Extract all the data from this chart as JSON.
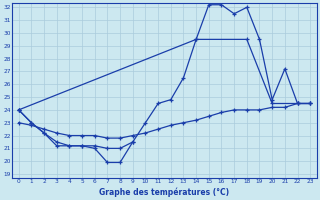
{
  "xlabel": "Graphe des températures (°C)",
  "xlim": [
    -0.5,
    23.5
  ],
  "ylim": [
    18.7,
    32.3
  ],
  "xticks": [
    0,
    1,
    2,
    3,
    4,
    5,
    6,
    7,
    8,
    9,
    10,
    11,
    12,
    13,
    14,
    15,
    16,
    17,
    18,
    19,
    20,
    21,
    22,
    23
  ],
  "yticks": [
    19,
    20,
    21,
    22,
    23,
    24,
    25,
    26,
    27,
    28,
    29,
    30,
    31,
    32
  ],
  "background_color": "#cce8f0",
  "grid_color": "#aaccdd",
  "line_color": "#1a3eaa",
  "line1_x": [
    0,
    1,
    2,
    3,
    4,
    5,
    6,
    7,
    8,
    9
  ],
  "line1_y": [
    24.0,
    23.0,
    22.2,
    21.2,
    21.2,
    21.2,
    21.0,
    19.9,
    19.9,
    21.5
  ],
  "line2_x": [
    0,
    1,
    2,
    3,
    4,
    5,
    6,
    7,
    8,
    9,
    10,
    11,
    12,
    13,
    14,
    15,
    16,
    17,
    18,
    19,
    20,
    21,
    22,
    23
  ],
  "line2_y": [
    24.0,
    23.0,
    22.2,
    21.5,
    21.2,
    21.2,
    21.2,
    21.0,
    21.0,
    21.5,
    23.0,
    24.5,
    24.8,
    26.5,
    29.5,
    32.2,
    32.2,
    31.5,
    32.0,
    29.5,
    24.8,
    27.2,
    24.5,
    24.5
  ],
  "line3_x": [
    0,
    14,
    18,
    20,
    22,
    23
  ],
  "line3_y": [
    24.0,
    29.5,
    29.5,
    24.5,
    24.5,
    24.5
  ],
  "line4_x": [
    0,
    1,
    2,
    3,
    4,
    5,
    6,
    7,
    8,
    9,
    10,
    11,
    12,
    13,
    14,
    15,
    16,
    17,
    18,
    19,
    20,
    21,
    22,
    23
  ],
  "line4_y": [
    23.0,
    22.8,
    22.5,
    22.2,
    22.0,
    22.0,
    22.0,
    21.8,
    21.8,
    22.0,
    22.2,
    22.5,
    22.8,
    23.0,
    23.2,
    23.5,
    23.8,
    24.0,
    24.0,
    24.0,
    24.2,
    24.2,
    24.5,
    24.5
  ]
}
